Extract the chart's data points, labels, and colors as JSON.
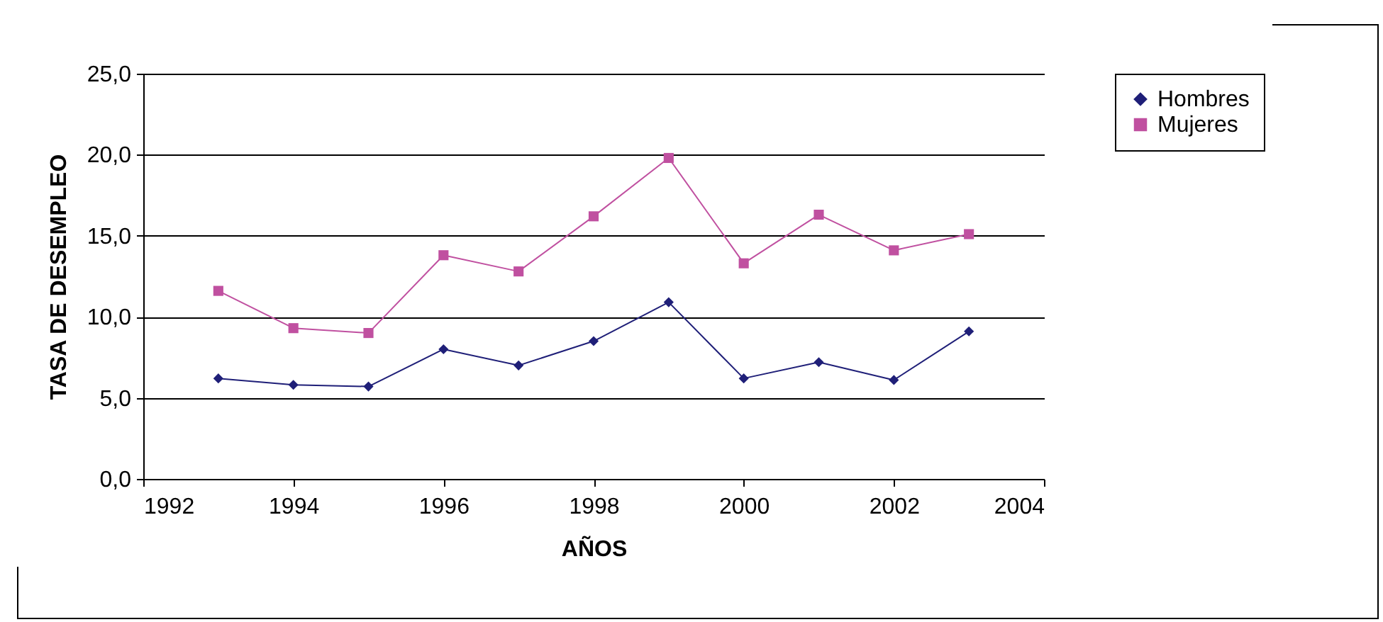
{
  "chart_data": {
    "type": "line",
    "xlabel": "AÑOS",
    "ylabel": "TASA DE DESEMPLEO",
    "x": [
      1993,
      1994,
      1995,
      1996,
      1997,
      1998,
      1999,
      2000,
      2001,
      2002,
      2003
    ],
    "series": [
      {
        "name": "Hombres",
        "color": "#1f1f78",
        "marker": "diamond",
        "values": [
          6.2,
          5.8,
          5.7,
          8.0,
          7.0,
          8.5,
          10.9,
          6.2,
          7.2,
          6.1,
          9.1
        ]
      },
      {
        "name": "Mujeres",
        "color": "#c050a0",
        "marker": "square",
        "values": [
          11.6,
          9.3,
          9.0,
          13.8,
          12.8,
          16.2,
          19.8,
          13.3,
          16.3,
          14.1,
          15.1
        ]
      }
    ],
    "xlim": [
      1992,
      2004
    ],
    "xticks": [
      1992,
      1994,
      1996,
      1998,
      2000,
      2002,
      2004
    ],
    "ylim": [
      0,
      25
    ],
    "yticks": [
      {
        "value": 0,
        "label": "0,0"
      },
      {
        "value": 5,
        "label": "5,0"
      },
      {
        "value": 10,
        "label": "10,0"
      },
      {
        "value": 15,
        "label": "15,0"
      },
      {
        "value": 20,
        "label": "20,0"
      },
      {
        "value": 25,
        "label": "25,0"
      }
    ],
    "grid": "y",
    "legend": "right"
  }
}
